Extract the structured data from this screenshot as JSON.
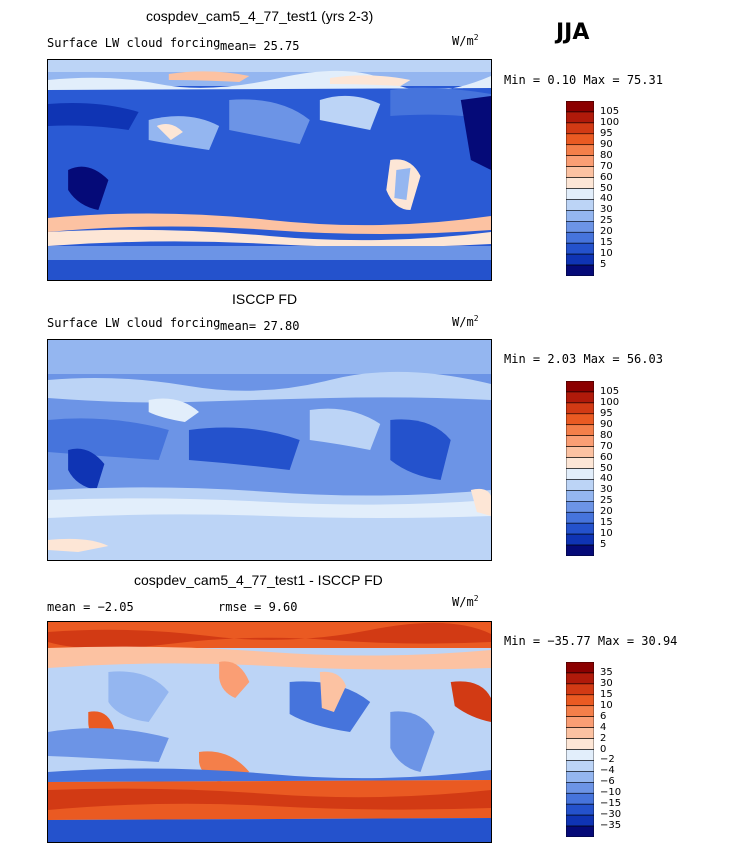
{
  "season": "JJA",
  "units": "W/m",
  "units_sup": "2",
  "panels": [
    {
      "title": "cospdev_cam5_4_77_test1 (yrs 2-3)",
      "subtitle": "Surface LW cloud forcing",
      "mean_text": "mean=  25.75",
      "minmax_text": "Min =   0.10 Max =  75.31"
    },
    {
      "title": "ISCCP FD",
      "subtitle": "Surface LW cloud forcing",
      "mean_text": "mean=  27.80",
      "minmax_text": "Min =   2.03 Max =  56.03"
    },
    {
      "title": "cospdev_cam5_4_77_test1 - ISCCP FD",
      "mean_text": "mean =  −2.05",
      "rmse_text": "rmse =   9.60",
      "minmax_text": "Min = −35.77 Max =  30.94"
    }
  ],
  "colorbars": {
    "absolute": {
      "labels": [
        "105",
        "100",
        "95",
        "90",
        "80",
        "70",
        "60",
        "50",
        "40",
        "30",
        "25",
        "20",
        "15",
        "10",
        "5"
      ],
      "colors": [
        "#8b0000",
        "#b01a0a",
        "#d23a14",
        "#ea5a22",
        "#f47f4a",
        "#fa9e74",
        "#fcc2a2",
        "#fde6d6",
        "#e2eefb",
        "#bcd4f6",
        "#94b6f0",
        "#6c94e6",
        "#4674dc",
        "#2452cc",
        "#0f34b4",
        "#050a78"
      ]
    },
    "difference": {
      "labels": [
        "35",
        "30",
        "15",
        "10",
        "6",
        "4",
        "2",
        "0",
        "−2",
        "−4",
        "−6",
        "−10",
        "−15",
        "−30",
        "−35"
      ],
      "colors": [
        "#8b0000",
        "#b01a0a",
        "#d23a14",
        "#ea5a22",
        "#f47f4a",
        "#fa9e74",
        "#fcc2a2",
        "#fde6d6",
        "#e2eefb",
        "#bcd4f6",
        "#94b6f0",
        "#6c94e6",
        "#4674dc",
        "#2452cc",
        "#0f34b4",
        "#050a78"
      ]
    }
  },
  "chart_data": [
    {
      "type": "heatmap",
      "title": "cospdev_cam5_4_77_test1 (yrs 2-3)",
      "variable": "Surface LW cloud forcing",
      "units": "W/m2",
      "season": "JJA",
      "mean": 25.75,
      "min": 0.1,
      "max": 75.31,
      "contour_levels": [
        5,
        10,
        15,
        20,
        25,
        30,
        40,
        50,
        60,
        70,
        80,
        90,
        95,
        100,
        105
      ]
    },
    {
      "type": "heatmap",
      "title": "ISCCP FD",
      "variable": "Surface LW cloud forcing",
      "units": "W/m2",
      "season": "JJA",
      "mean": 27.8,
      "min": 2.03,
      "max": 56.03,
      "contour_levels": [
        5,
        10,
        15,
        20,
        25,
        30,
        40,
        50,
        60,
        70,
        80,
        90,
        95,
        100,
        105
      ]
    },
    {
      "type": "heatmap",
      "title": "cospdev_cam5_4_77_test1 - ISCCP FD",
      "units": "W/m2",
      "season": "JJA",
      "mean": -2.05,
      "rmse": 9.6,
      "min": -35.77,
      "max": 30.94,
      "contour_levels": [
        -35,
        -30,
        -15,
        -10,
        -6,
        -4,
        -2,
        0,
        2,
        4,
        6,
        10,
        15,
        30,
        35
      ]
    }
  ]
}
